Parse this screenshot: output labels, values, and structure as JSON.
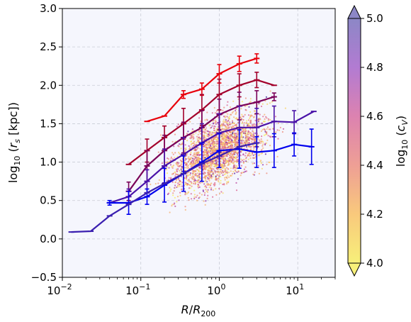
{
  "chart_data": {
    "type": "scatter",
    "title": "",
    "xlabel": "R/R200",
    "ylabel": "log10(rs [kpc])",
    "x_scale": "log",
    "xlim": [
      0.01,
      30
    ],
    "ylim": [
      -0.5,
      3.0
    ],
    "x_ticks": [
      "10",
      "10",
      "10",
      "10"
    ],
    "x_tick_exponents": [
      "−2",
      "−1",
      "0",
      "1"
    ],
    "y_ticks": [
      "−0.5",
      "0.0",
      "0.5",
      "1.0",
      "1.5",
      "2.0",
      "2.5",
      "3.0"
    ],
    "grid": true,
    "background": "#f5f6fd",
    "colorbar": {
      "label": "log10(cV)",
      "range": [
        4.0,
        5.0
      ],
      "ticks": [
        "4.0",
        "4.2",
        "4.4",
        "4.6",
        "4.8",
        "5.0"
      ],
      "colormap": "plasma_r",
      "extend": "both"
    },
    "scatter_cloud": {
      "description": "dense scatter of individual points",
      "x_range": [
        0.1,
        8
      ],
      "y_range": [
        0.0,
        2.5
      ]
    },
    "series": [
      {
        "color": "#e8000b",
        "x": [
          0.12,
          0.2,
          0.35,
          0.6,
          1.0,
          1.8,
          3.0
        ],
        "y": [
          1.53,
          1.6,
          1.88,
          1.95,
          2.15,
          2.28,
          2.35
        ],
        "err": [
          0.0,
          0.0,
          0.05,
          0.08,
          0.12,
          0.1,
          0.06
        ]
      },
      {
        "color": "#a3002b",
        "x": [
          0.07,
          0.12,
          0.2,
          0.35,
          0.6,
          1.0,
          1.8,
          3.0,
          5.0
        ],
        "y": [
          0.97,
          1.15,
          1.32,
          1.5,
          1.68,
          1.88,
          2.0,
          2.07,
          2.0
        ],
        "err": [
          0.0,
          0.15,
          0.15,
          0.2,
          0.2,
          0.2,
          0.15,
          0.1,
          0.0
        ]
      },
      {
        "color": "#7a0058",
        "x": [
          0.07,
          0.12,
          0.2,
          0.35,
          0.6,
          1.0,
          1.8,
          3.0,
          5.0
        ],
        "y": [
          0.62,
          0.95,
          1.15,
          1.32,
          1.45,
          1.62,
          1.73,
          1.78,
          1.85
        ],
        "err": [
          0.12,
          0.2,
          0.2,
          0.2,
          0.22,
          0.2,
          0.18,
          0.15,
          0.05
        ]
      },
      {
        "color": "#4a12a8",
        "x": [
          0.04,
          0.07,
          0.12,
          0.2,
          0.35,
          0.6,
          1.0,
          1.8,
          3.0,
          5.0,
          9.0,
          16.0
        ],
        "y": [
          0.47,
          0.55,
          0.75,
          0.95,
          1.1,
          1.25,
          1.38,
          1.45,
          1.45,
          1.53,
          1.52,
          1.66
        ],
        "err": [
          0.0,
          0.1,
          0.15,
          0.22,
          0.22,
          0.25,
          0.25,
          0.28,
          0.25,
          0.2,
          0.15,
          0.0
        ]
      },
      {
        "color": "#0000ee",
        "x": [
          0.04,
          0.07,
          0.12,
          0.2,
          0.35,
          0.6,
          1.0,
          1.8,
          3.0,
          5.0,
          9.0,
          15.0
        ],
        "y": [
          0.47,
          0.47,
          0.55,
          0.7,
          0.85,
          1.0,
          1.15,
          1.17,
          1.13,
          1.15,
          1.23,
          1.2
        ],
        "err": [
          0.03,
          0.15,
          0.1,
          0.22,
          0.23,
          0.25,
          0.22,
          0.25,
          0.2,
          0.22,
          0.15,
          0.23
        ]
      },
      {
        "color": "#3a1fb0",
        "x": [
          0.013,
          0.023,
          0.04,
          0.07,
          0.12,
          0.2,
          0.35,
          0.6,
          1.0,
          1.8,
          3.0
        ],
        "y": [
          0.09,
          0.1,
          0.3,
          0.45,
          0.6,
          0.72,
          0.85,
          0.98,
          1.08,
          1.2,
          1.25
        ],
        "err": [
          0,
          0,
          0,
          0,
          0,
          0,
          0,
          0,
          0,
          0,
          0
        ]
      }
    ]
  }
}
